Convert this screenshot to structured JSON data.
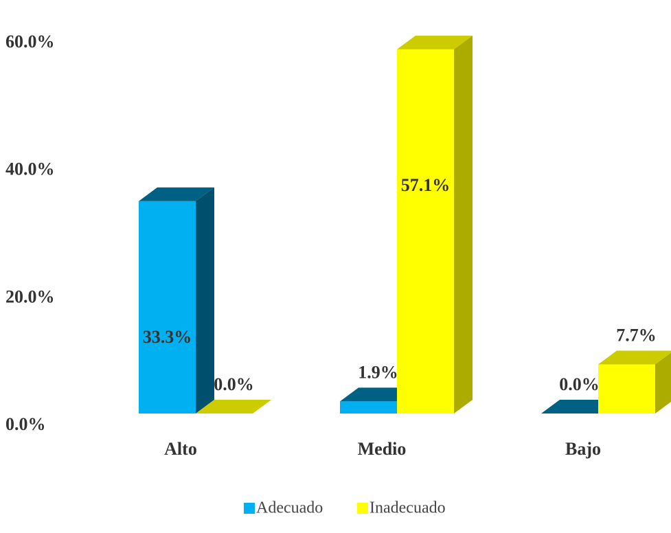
{
  "chart_data": {
    "type": "bar3d",
    "categories": [
      "Alto",
      "Medio",
      "Bajo"
    ],
    "series": [
      {
        "name": "Adecuado",
        "color": "#00b0f0",
        "values": [
          33.3,
          1.9,
          0.0
        ],
        "value_labels": [
          "33.3%",
          "1.9%",
          "0.0%"
        ]
      },
      {
        "name": "Inadecuado",
        "color": "#ffff00",
        "values": [
          0.0,
          57.1,
          7.7
        ],
        "value_labels": [
          "0.0%",
          "57.1%",
          "7.7%"
        ]
      }
    ],
    "ylim": [
      0,
      60
    ],
    "yticks": [
      {
        "value": 0,
        "label": "0.0%"
      },
      {
        "value": 20,
        "label": "20.0%"
      },
      {
        "value": 40,
        "label": "40.0%"
      },
      {
        "value": 60,
        "label": "60.0%"
      }
    ],
    "grid": false,
    "legend": "bottom"
  }
}
